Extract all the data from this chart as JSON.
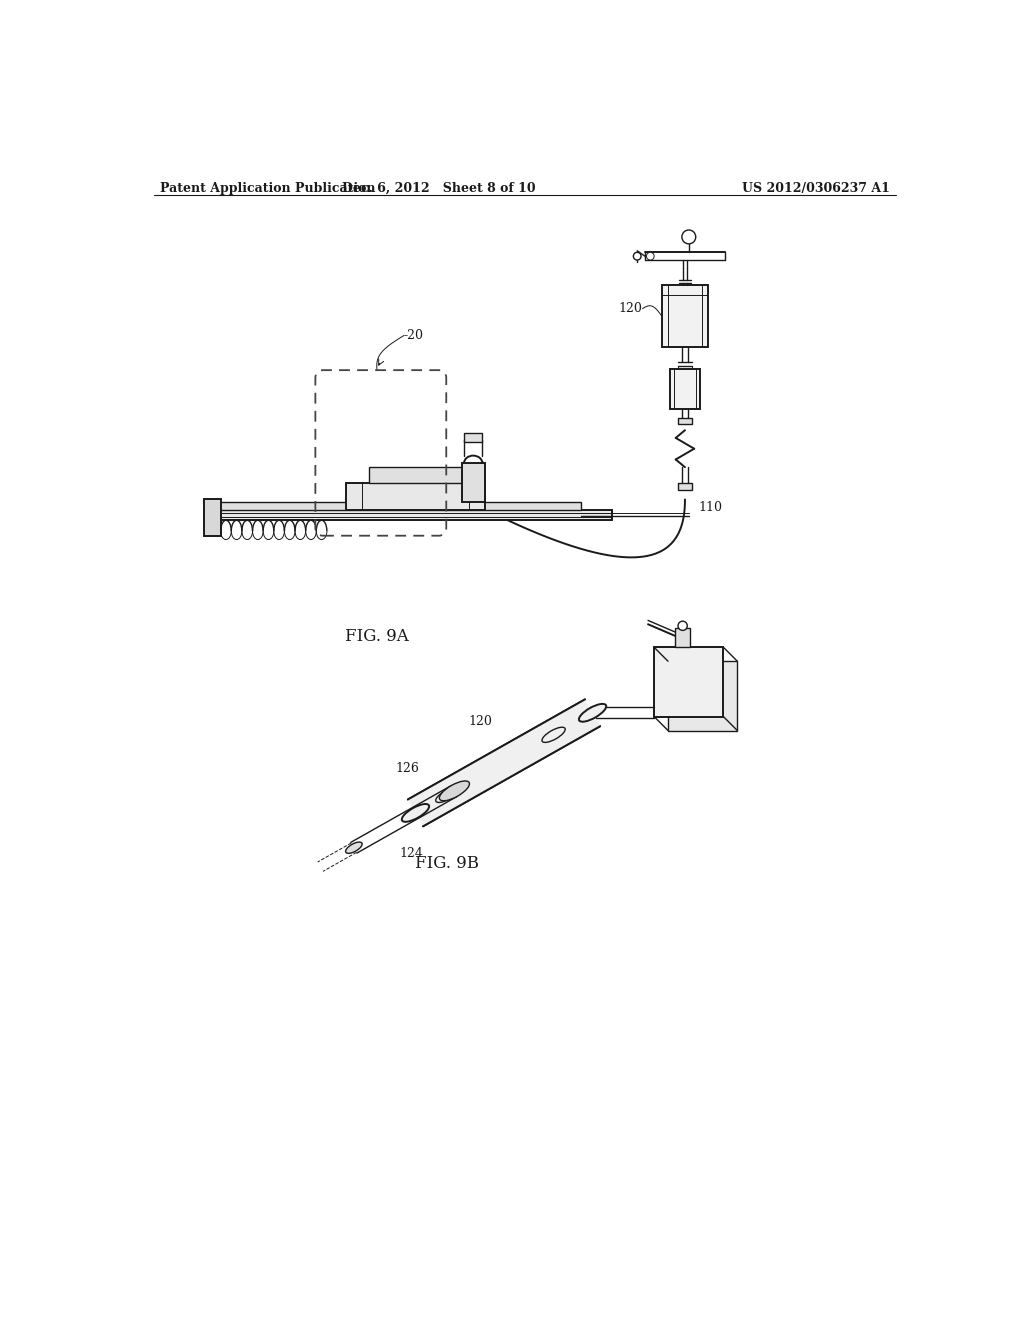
{
  "bg_color": "#ffffff",
  "line_color": "#1a1a1a",
  "header_left": "Patent Application Publication",
  "header_mid": "Dec. 6, 2012   Sheet 8 of 10",
  "header_right": "US 2012/0306237 A1",
  "fig9a_label": "FIG. 9A",
  "fig9b_label": "FIG. 9B",
  "label_20": "-20",
  "label_110": "110",
  "label_120_top": "120",
  "label_120_bot": "120",
  "label_124": "124",
  "label_126": "126"
}
